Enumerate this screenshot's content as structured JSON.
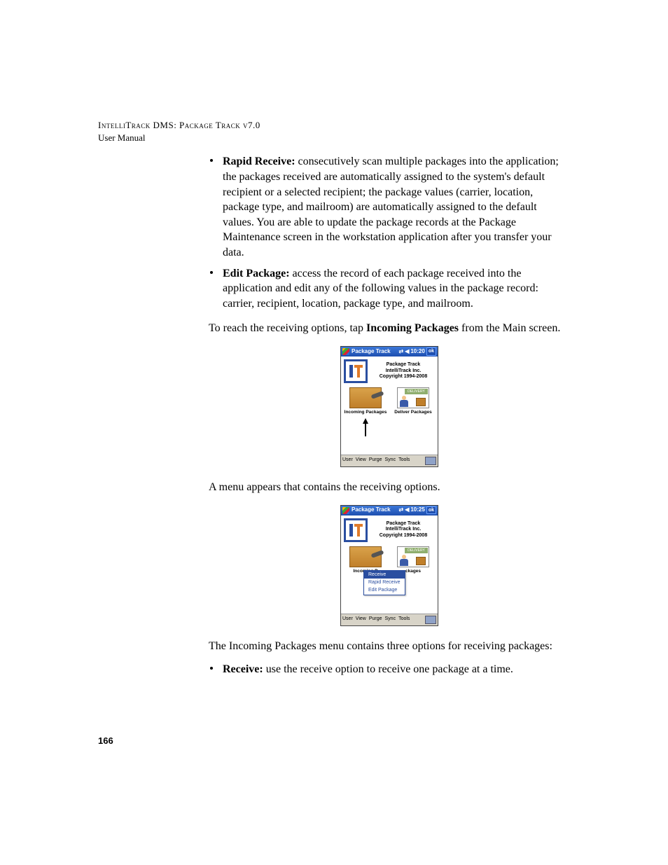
{
  "header": {
    "line1": "IntelliTrack DMS: Package Track v7.0",
    "line2": "User Manual"
  },
  "bullets_top": [
    {
      "title": "Rapid Receive:",
      "text": " consecutively scan multiple packages into the application; the packages received are automatically assigned to the system's default recipient or a selected recipient; the package values (carrier, location, package type, and mailroom) are automatically assigned to the default values. You are able to update the package records at the Package Maintenance screen in the workstation application after you transfer your data."
    },
    {
      "title": "Edit Package:",
      "text": " access the record of each package received into the application and edit any of the following values in the package record: carrier, recipient, location, package type, and mailroom."
    }
  ],
  "para1_a": "To reach the receiving options, tap ",
  "para1_bold": "Incoming Packages",
  "para1_b": " from the Main screen.",
  "screenshot": {
    "title": "Package Track",
    "time1": "10:20",
    "time2": "10:25",
    "ok": "ok",
    "logo_lines": [
      "Package Track",
      "IntelliTrack Inc.",
      "Copyright 1994-2008"
    ],
    "incoming_label": "Incoming Packages",
    "deliver_label": "Deliver Packages",
    "deliver_label2": "ckages",
    "incoming_short": "Incoming P",
    "delivery_sign": "DELIVERY",
    "menu": [
      "User",
      "View",
      "Purge",
      "Sync",
      "Tools"
    ],
    "popup": [
      "Receive",
      "Rapid Receive",
      "Edit Package"
    ]
  },
  "para2": "A menu appears that contains the receiving options.",
  "para3": "The Incoming Packages menu contains three options for receiving packages:",
  "bullets_bottom": [
    {
      "title": "Receive:",
      "text": " use the receive option to receive one package at a time."
    }
  ],
  "page_number": "166"
}
